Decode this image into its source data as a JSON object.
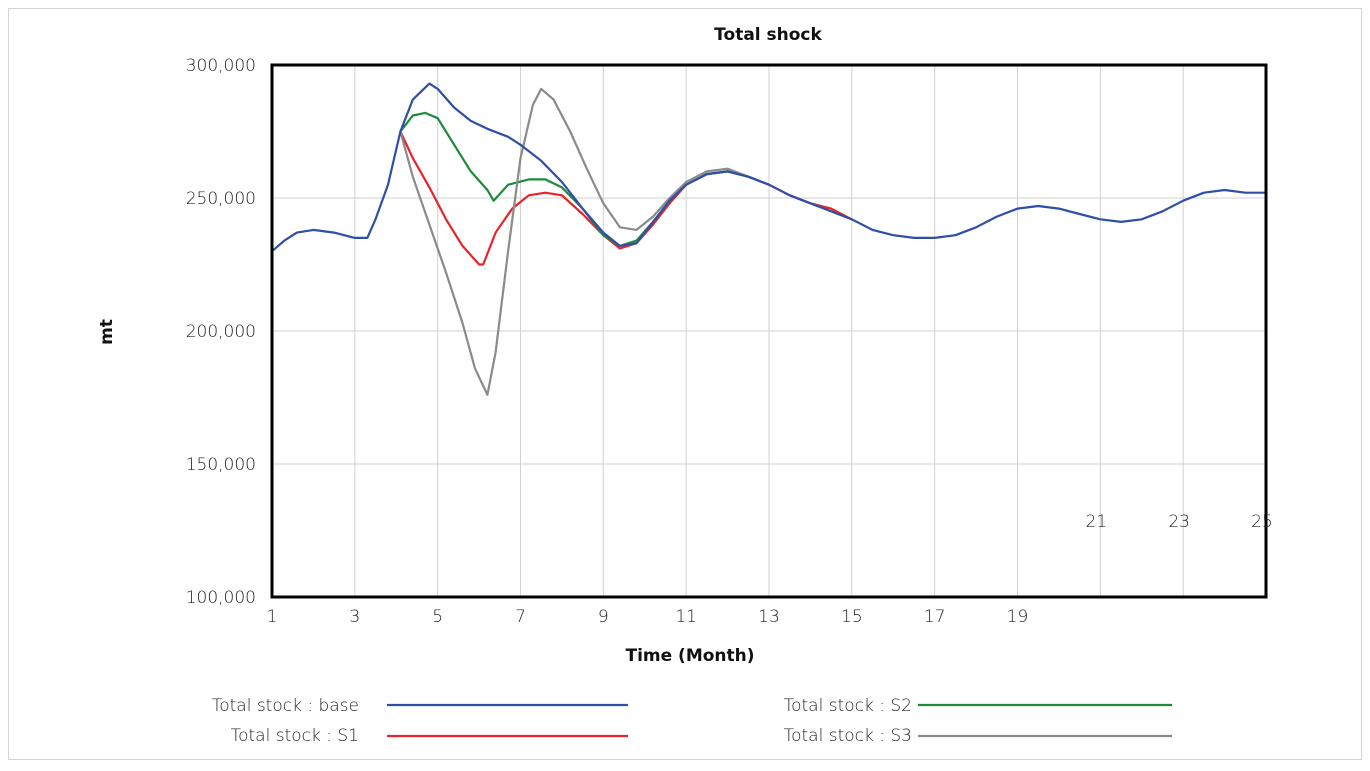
{
  "chart_data": {
    "type": "line",
    "title": "Total shock",
    "xlabel": "Time (Month)",
    "ylabel": "mt",
    "xlim": [
      1,
      25
    ],
    "ylim": [
      100000,
      300000
    ],
    "yticks": [
      "100,000",
      "150,000",
      "200,000",
      "250,000",
      "300,000"
    ],
    "xticks_lower": [
      "1",
      "3",
      "5",
      "7",
      "9",
      "11",
      "13",
      "15",
      "17",
      "19"
    ],
    "xticks_upper": [
      "21",
      "23",
      "25"
    ],
    "grid": true,
    "legend_position": "bottom",
    "series": [
      {
        "name": "Total stock : base",
        "color": "#2e4fa8",
        "points": [
          [
            1,
            230000
          ],
          [
            1.3,
            234000
          ],
          [
            1.6,
            237000
          ],
          [
            2,
            238000
          ],
          [
            2.5,
            237000
          ],
          [
            3,
            235000
          ],
          [
            3.3,
            235000
          ],
          [
            3.5,
            242000
          ],
          [
            3.8,
            255000
          ],
          [
            4.1,
            275000
          ],
          [
            4.4,
            287000
          ],
          [
            4.8,
            293000
          ],
          [
            5.0,
            291000
          ],
          [
            5.4,
            284000
          ],
          [
            5.8,
            279000
          ],
          [
            6.2,
            276000
          ],
          [
            6.7,
            273000
          ],
          [
            7.0,
            270000
          ],
          [
            7.5,
            264000
          ],
          [
            8.0,
            256000
          ],
          [
            8.5,
            246000
          ],
          [
            9.0,
            237000
          ],
          [
            9.4,
            232000
          ],
          [
            9.8,
            233000
          ],
          [
            10.2,
            241000
          ],
          [
            10.6,
            249000
          ],
          [
            11.0,
            255000
          ],
          [
            11.5,
            259000
          ],
          [
            12.0,
            260000
          ],
          [
            12.5,
            258000
          ],
          [
            13.0,
            255000
          ],
          [
            13.5,
            251000
          ],
          [
            14.0,
            248000
          ],
          [
            14.5,
            245000
          ],
          [
            15.0,
            242000
          ],
          [
            15.5,
            238000
          ],
          [
            16.0,
            236000
          ],
          [
            16.5,
            235000
          ],
          [
            17.0,
            235000
          ],
          [
            17.5,
            236000
          ],
          [
            18.0,
            239000
          ],
          [
            18.5,
            243000
          ],
          [
            19.0,
            246000
          ],
          [
            19.5,
            247000
          ],
          [
            20.0,
            246000
          ],
          [
            20.5,
            244000
          ],
          [
            21.0,
            242000
          ],
          [
            21.5,
            241000
          ],
          [
            22.0,
            242000
          ],
          [
            22.5,
            245000
          ],
          [
            23.0,
            249000
          ],
          [
            23.5,
            252000
          ],
          [
            24.0,
            253000
          ],
          [
            24.5,
            252000
          ],
          [
            25.0,
            252000
          ]
        ]
      },
      {
        "name": "Total stock : S1",
        "color": "#e8242a",
        "points": [
          [
            4.1,
            275000
          ],
          [
            4.4,
            265000
          ],
          [
            4.8,
            254000
          ],
          [
            5.2,
            242000
          ],
          [
            5.6,
            232000
          ],
          [
            6.0,
            225000
          ],
          [
            6.1,
            225000
          ],
          [
            6.4,
            237000
          ],
          [
            6.8,
            246000
          ],
          [
            7.2,
            251000
          ],
          [
            7.6,
            252000
          ],
          [
            8.0,
            251000
          ],
          [
            8.5,
            244000
          ],
          [
            9.0,
            236000
          ],
          [
            9.4,
            231000
          ],
          [
            9.8,
            233000
          ],
          [
            10.2,
            240000
          ],
          [
            10.6,
            248000
          ],
          [
            11.0,
            255000
          ],
          [
            11.5,
            259000
          ],
          [
            12.0,
            260000
          ],
          [
            12.5,
            258000
          ],
          [
            13.0,
            255000
          ],
          [
            13.5,
            251000
          ],
          [
            14.0,
            248000
          ],
          [
            14.5,
            246000
          ],
          [
            15.0,
            242000
          ]
        ]
      },
      {
        "name": "Total stock : S2",
        "color": "#1e8a3a",
        "points": [
          [
            4.1,
            275000
          ],
          [
            4.4,
            281000
          ],
          [
            4.7,
            282000
          ],
          [
            5.0,
            280000
          ],
          [
            5.4,
            270000
          ],
          [
            5.8,
            260000
          ],
          [
            6.2,
            253000
          ],
          [
            6.35,
            249000
          ],
          [
            6.7,
            255000
          ],
          [
            7.2,
            257000
          ],
          [
            7.6,
            257000
          ],
          [
            8.0,
            254000
          ],
          [
            8.5,
            246000
          ],
          [
            9.0,
            236000
          ],
          [
            9.4,
            232000
          ],
          [
            9.8,
            234000
          ],
          [
            10.2,
            241000
          ],
          [
            10.6,
            249000
          ],
          [
            11.0,
            255000
          ],
          [
            11.5,
            259000
          ],
          [
            12.0,
            260000
          ],
          [
            12.5,
            258000
          ],
          [
            13.0,
            255000
          ]
        ]
      },
      {
        "name": "Total stock : S3",
        "color": "#8a8a8a",
        "points": [
          [
            4.1,
            275000
          ],
          [
            4.4,
            258000
          ],
          [
            4.8,
            240000
          ],
          [
            5.2,
            222000
          ],
          [
            5.6,
            203000
          ],
          [
            5.9,
            186000
          ],
          [
            6.2,
            176000
          ],
          [
            6.4,
            192000
          ],
          [
            6.7,
            230000
          ],
          [
            7.0,
            265000
          ],
          [
            7.3,
            285000
          ],
          [
            7.5,
            291000
          ],
          [
            7.8,
            287000
          ],
          [
            8.2,
            275000
          ],
          [
            8.6,
            261000
          ],
          [
            9.0,
            248000
          ],
          [
            9.4,
            239000
          ],
          [
            9.8,
            238000
          ],
          [
            10.2,
            243000
          ],
          [
            10.6,
            250000
          ],
          [
            11.0,
            256000
          ],
          [
            11.5,
            260000
          ],
          [
            12.0,
            261000
          ],
          [
            12.5,
            258000
          ],
          [
            13.0,
            255000
          ]
        ]
      }
    ]
  },
  "legend": {
    "items": [
      {
        "label": "Total stock : base",
        "color": "#2e4fa8"
      },
      {
        "label": "Total stock : S2",
        "color": "#1e8a3a"
      },
      {
        "label": "Total stock : S1",
        "color": "#e8242a"
      },
      {
        "label": "Total stock : S3",
        "color": "#8a8a8a"
      }
    ]
  }
}
